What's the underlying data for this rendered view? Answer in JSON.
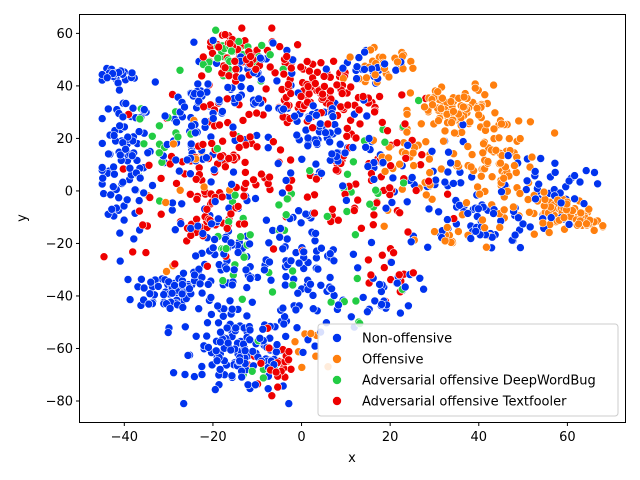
{
  "chart_data": {
    "type": "scatter",
    "title": "",
    "xlabel": "x",
    "ylabel": "y",
    "xlim": [
      -50,
      73
    ],
    "ylim": [
      -88,
      67
    ],
    "xticks": [
      -40,
      -20,
      0,
      20,
      40,
      60
    ],
    "yticks": [
      -80,
      -60,
      -40,
      -20,
      0,
      20,
      40,
      60
    ],
    "xtick_labels": [
      "−40",
      "−20",
      "0",
      "20",
      "40",
      "60"
    ],
    "ytick_labels": [
      "−80",
      "−60",
      "−40",
      "−20",
      "0",
      "20",
      "40",
      "60"
    ],
    "grid": false,
    "legend_position": "lower-right",
    "series": [
      {
        "name": "Non-offensive",
        "color": "#0033ee",
        "clusters": [
          {
            "cx": -40,
            "cy": 10,
            "sx": 3,
            "sy": 14,
            "n": 90
          },
          {
            "cx": -41,
            "cy": 44,
            "sx": 2.5,
            "sy": 1.2,
            "n": 18
          },
          {
            "cx": -30,
            "cy": -38,
            "sx": 4,
            "sy": 4,
            "n": 60
          },
          {
            "cx": -24,
            "cy": 25,
            "sx": 5,
            "sy": 14,
            "n": 80
          },
          {
            "cx": -18,
            "cy": -30,
            "sx": 6,
            "sy": 12,
            "n": 90
          },
          {
            "cx": -13,
            "cy": -62,
            "sx": 6,
            "sy": 8,
            "n": 130
          },
          {
            "cx": -10,
            "cy": 42,
            "sx": 6,
            "sy": 6,
            "n": 40
          },
          {
            "cx": 0,
            "cy": -30,
            "sx": 5,
            "sy": 13,
            "n": 80
          },
          {
            "cx": 5,
            "cy": 20,
            "sx": 6,
            "sy": 10,
            "n": 70
          },
          {
            "cx": 15,
            "cy": 46,
            "sx": 5,
            "sy": 4,
            "n": 25
          },
          {
            "cx": 18,
            "cy": -38,
            "sx": 4,
            "sy": 6,
            "n": 30
          },
          {
            "cx": 40,
            "cy": -12,
            "sx": 8,
            "sy": 5,
            "n": 50
          },
          {
            "cx": 55,
            "cy": 0,
            "sx": 5,
            "sy": 7,
            "n": 40
          },
          {
            "cx": 28,
            "cy": 5,
            "sx": 6,
            "sy": 10,
            "n": 40
          }
        ]
      },
      {
        "name": "Offensive",
        "color": "#ff7f0e",
        "clusters": [
          {
            "cx": 35,
            "cy": 30,
            "sx": 5,
            "sy": 5,
            "n": 90
          },
          {
            "cx": 44,
            "cy": 10,
            "sx": 5,
            "sy": 10,
            "n": 80
          },
          {
            "cx": 58,
            "cy": -8,
            "sx": 4,
            "sy": 3,
            "n": 50
          },
          {
            "cx": 65,
            "cy": -12,
            "sx": 2,
            "sy": 1.5,
            "n": 25
          },
          {
            "cx": 18,
            "cy": 48,
            "sx": 4,
            "sy": 3,
            "n": 30
          },
          {
            "cx": 25,
            "cy": 10,
            "sx": 5,
            "sy": 8,
            "n": 30
          },
          {
            "cx": 35,
            "cy": -18,
            "sx": 4,
            "sy": 3,
            "n": 15
          },
          {
            "cx": -30,
            "cy": 5,
            "sx": 5,
            "sy": 15,
            "n": 12
          },
          {
            "cx": 0,
            "cy": -60,
            "sx": 3,
            "sy": 5,
            "n": 10
          }
        ]
      },
      {
        "name": "Adversarial offensive DeepWordBug",
        "color": "#22cc44",
        "clusters": [
          {
            "cx": -15,
            "cy": 50,
            "sx": 4,
            "sy": 5,
            "n": 30
          },
          {
            "cx": -32,
            "cy": 20,
            "sx": 4,
            "sy": 10,
            "n": 18
          },
          {
            "cx": -12,
            "cy": -20,
            "sx": 6,
            "sy": 15,
            "n": 28
          },
          {
            "cx": 15,
            "cy": 0,
            "sx": 7,
            "sy": 15,
            "n": 22
          },
          {
            "cx": -8,
            "cy": -70,
            "sx": 2,
            "sy": 3,
            "n": 6
          },
          {
            "cx": 10,
            "cy": -45,
            "sx": 3,
            "sy": 4,
            "n": 6
          }
        ]
      },
      {
        "name": "Adversarial offensive Textfooler",
        "color": "#ee0000",
        "clusters": [
          {
            "cx": -15,
            "cy": 50,
            "sx": 5,
            "sy": 7,
            "n": 60
          },
          {
            "cx": 1,
            "cy": 40,
            "sx": 4,
            "sy": 6,
            "n": 60
          },
          {
            "cx": -18,
            "cy": 10,
            "sx": 7,
            "sy": 15,
            "n": 100
          },
          {
            "cx": 12,
            "cy": 5,
            "sx": 8,
            "sy": 15,
            "n": 80
          },
          {
            "cx": -5,
            "cy": -65,
            "sx": 3,
            "sy": 6,
            "n": 25
          },
          {
            "cx": -28,
            "cy": -10,
            "sx": 5,
            "sy": 10,
            "n": 25
          },
          {
            "cx": 20,
            "cy": -30,
            "sx": 3,
            "sy": 5,
            "n": 15
          },
          {
            "cx": 8,
            "cy": 35,
            "sx": 4,
            "sy": 4,
            "n": 30
          }
        ]
      }
    ]
  }
}
